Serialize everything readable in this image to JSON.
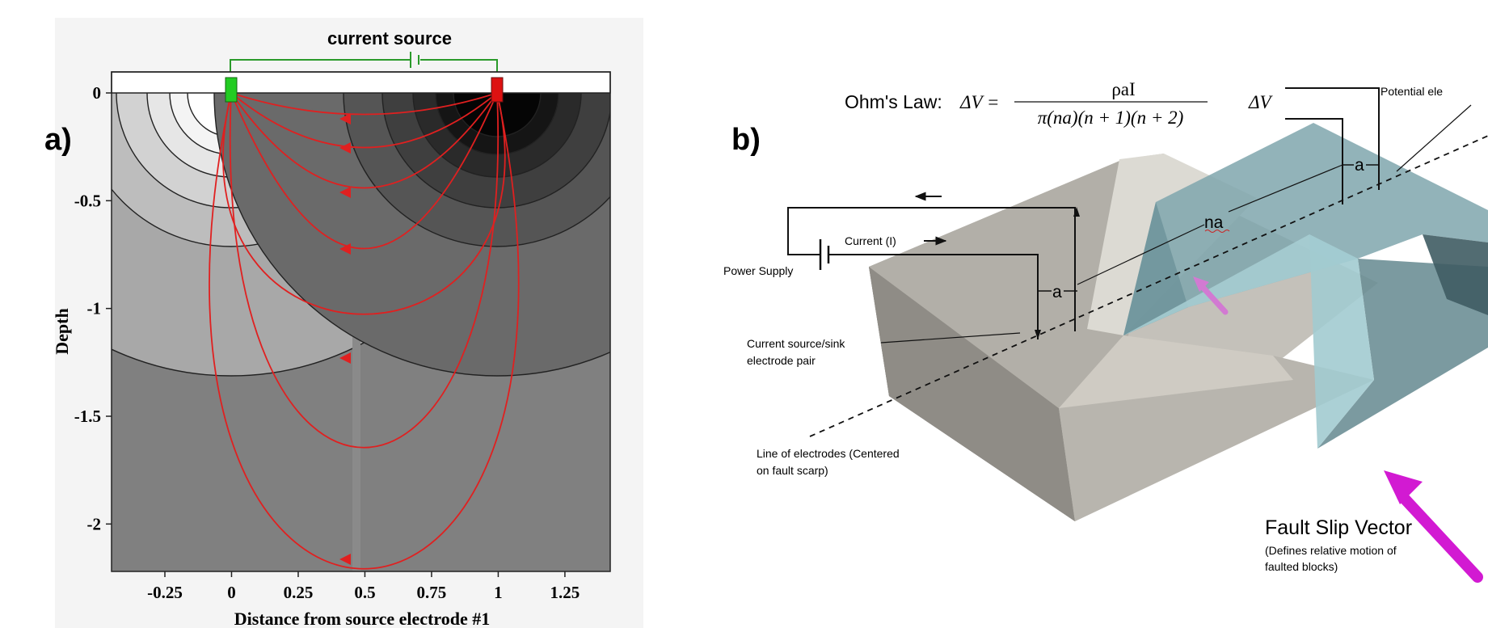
{
  "panel_a": {
    "label": "a)",
    "top_label": "current source",
    "ylabel": "Depth",
    "xlabel": "Distance from source electrode #1",
    "x_ticks": [
      "-0.25",
      "0",
      "0.25",
      "0.5",
      "0.75",
      "1",
      "1.25"
    ],
    "x_tick_values": [
      -0.25,
      0,
      0.25,
      0.5,
      0.75,
      1,
      1.25
    ],
    "y_ticks": [
      "0",
      "-0.5",
      "-1",
      "-1.5",
      "-2"
    ],
    "y_tick_values": [
      0,
      -0.5,
      -1,
      -1.5,
      -2
    ],
    "xlim": [
      -0.45,
      1.42
    ],
    "ylim": [
      -2.22,
      0
    ],
    "source_electrode_x": 0,
    "sink_electrode_x": 1,
    "colors": {
      "source": "#22cc22",
      "sink": "#dd1111",
      "current_lines": "#e02020",
      "wire": "#2a9a2a"
    }
  },
  "panel_b": {
    "label": "b)",
    "ohms_law": {
      "prefix": "Ohm's Law: ",
      "lhs": "ΔV =",
      "numerator": "ρaI",
      "denominator": "π(na)(n + 1)(n + 2)"
    },
    "delta_v": "ΔV",
    "labels": {
      "potential": "Potential ele",
      "current": "Current (I)",
      "power_supply": "Power Supply",
      "electrode_pair_line1": "Current source/sink",
      "electrode_pair_line2": "electrode pair",
      "line_electrodes_line1": "Line of electrodes (Centered",
      "line_electrodes_line2": "on fault scarp)",
      "a1": "a",
      "a2": "a",
      "na": "na",
      "fault_title": "Fault Slip Vector",
      "fault_desc_line1": "(Defines relative motion of",
      "fault_desc_line2": "faulted blocks)"
    },
    "colors": {
      "arrow": "#d21ad2",
      "block_grey": "#aeaba4",
      "block_teal": "#7fa6ad"
    }
  }
}
